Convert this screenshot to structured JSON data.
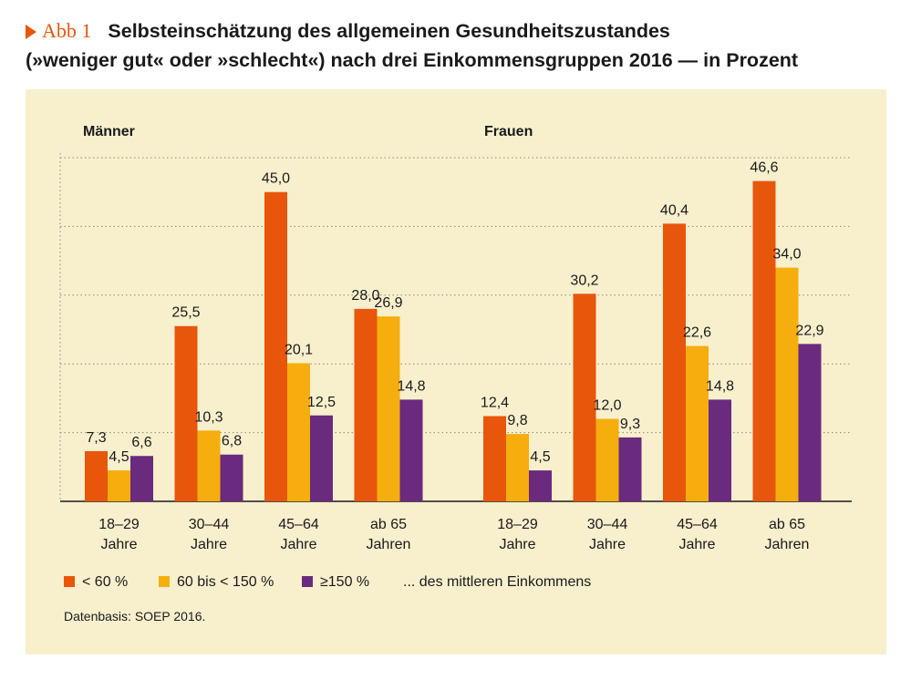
{
  "header": {
    "figure_label": "Abb 1",
    "title_line1": "Selbsteinschätzung des allgemeinen Gesundheitszustandes",
    "title_line2": "(»weniger gut« oder »schlecht«) nach drei Einkommensgruppen 2016 — in Prozent"
  },
  "colors": {
    "series_low": "#e8560c",
    "series_mid": "#f5ae0d",
    "series_high": "#6a2a7e",
    "panel_bg": "#f8efcd",
    "accent": "#e8560c"
  },
  "legend": {
    "items": [
      "< 60 %",
      "60 bis < 150 %",
      "≥150 %"
    ],
    "suffix": "... des mittleren Einkommens"
  },
  "source": "Datenbasis: SOEP 2016.",
  "chart_data": {
    "type": "bar",
    "ylim": [
      0,
      50
    ],
    "grid": true,
    "legend_position": "bottom",
    "series_names": [
      "< 60 %",
      "60 bis < 150 %",
      "≥150 %"
    ],
    "panels": [
      {
        "title": "Männer",
        "categories": [
          [
            "18–29",
            "Jahre"
          ],
          [
            "30–44",
            "Jahre"
          ],
          [
            "45–64",
            "Jahre"
          ],
          [
            "ab 65",
            "Jahren"
          ]
        ],
        "values": [
          [
            7.3,
            4.5,
            6.6
          ],
          [
            25.5,
            10.3,
            6.8
          ],
          [
            45.0,
            20.1,
            12.5
          ],
          [
            28.0,
            26.9,
            14.8
          ]
        ],
        "labels": [
          [
            "7,3",
            "4,5",
            "6,6"
          ],
          [
            "25,5",
            "10,3",
            "6,8"
          ],
          [
            "45,0",
            "20,1",
            "12,5"
          ],
          [
            "28,0",
            "26,9",
            "14,8"
          ]
        ]
      },
      {
        "title": "Frauen",
        "categories": [
          [
            "18–29",
            "Jahre"
          ],
          [
            "30–44",
            "Jahre"
          ],
          [
            "45–64",
            "Jahre"
          ],
          [
            "ab 65",
            "Jahren"
          ]
        ],
        "values": [
          [
            12.4,
            9.8,
            4.5
          ],
          [
            30.2,
            12.0,
            9.3
          ],
          [
            40.4,
            22.6,
            14.8
          ],
          [
            46.6,
            34.0,
            22.9
          ]
        ],
        "labels": [
          [
            "12,4",
            "9,8",
            "4,5"
          ],
          [
            "30,2",
            "12,0",
            "9,3"
          ],
          [
            "40,4",
            "22,6",
            "14,8"
          ],
          [
            "46,6",
            "34,0",
            "22,9"
          ]
        ]
      }
    ]
  }
}
